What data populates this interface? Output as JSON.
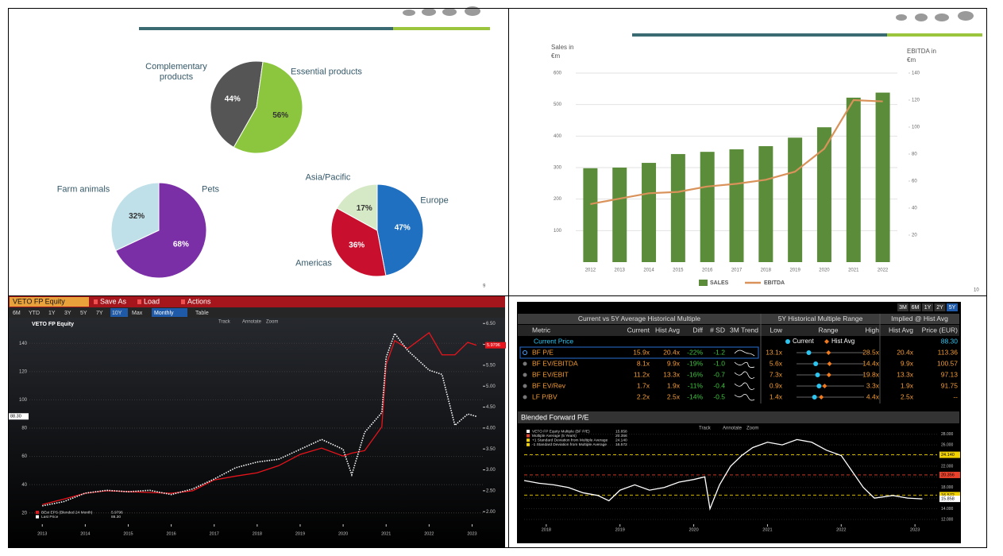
{
  "slides": [
    {
      "page_number": "9"
    },
    {
      "page_number": "10"
    }
  ],
  "chart_data": [
    {
      "type": "pie",
      "categories": [
        "Complementary products",
        "Essential products"
      ],
      "values": [
        44,
        56
      ],
      "value_labels": [
        "44%",
        "56%"
      ],
      "colors": [
        "#555555",
        "#8cc63f"
      ]
    },
    {
      "type": "pie",
      "categories": [
        "Farm animals",
        "Pets"
      ],
      "values": [
        32,
        68
      ],
      "value_labels": [
        "32%",
        "68%"
      ],
      "colors": [
        "#bfe0e8",
        "#7b2fa6"
      ]
    },
    {
      "type": "pie",
      "categories": [
        "Europe",
        "Americas",
        "Asia/Pacific"
      ],
      "values": [
        47,
        36,
        17
      ],
      "value_labels": [
        "47%",
        "36%",
        "17%"
      ],
      "colors": [
        "#1f70c1",
        "#c8102e",
        "#d6e9c6"
      ]
    },
    {
      "type": "bar",
      "y_label": "Sales in €m",
      "y2_label": "EBITDA in €m",
      "categories": [
        "2012",
        "2013",
        "2014",
        "2015",
        "2016",
        "2017",
        "2018",
        "2019",
        "2020",
        "2021",
        "2022"
      ],
      "series": [
        {
          "name": "SALES",
          "color": "#5b8c3a",
          "values": [
            298,
            300,
            315,
            343,
            350,
            358,
            368,
            395,
            428,
            522,
            538
          ]
        },
        {
          "name": "EBITDA",
          "color": "#d9925a",
          "type": "line",
          "axis": "y2",
          "values": [
            43,
            47,
            51,
            52,
            56,
            58,
            61,
            67,
            84,
            120,
            119
          ]
        }
      ],
      "ylim": [
        0,
        600
      ],
      "yticks": [
        100,
        200,
        300,
        400,
        500,
        600
      ],
      "y2lim": [
        0,
        140
      ],
      "y2ticks": [
        20,
        40,
        60,
        80,
        100,
        120,
        140
      ],
      "grid": true,
      "legend": "bottom"
    },
    {
      "type": "line",
      "title": "VETO FP Equity",
      "tools": [
        "Track",
        "Annotate",
        "Zoom"
      ],
      "x": [
        2013,
        2013.5,
        2014,
        2014.5,
        2015,
        2015.5,
        2016,
        2016.5,
        2017,
        2017.5,
        2018,
        2018.5,
        2019,
        2019.5,
        2020,
        2020.2,
        2020.5,
        2020.9,
        2021,
        2021.2,
        2021.5,
        2022,
        2022.3,
        2022.6,
        2022.9,
        2023.1
      ],
      "series": [
        {
          "name": "BEst EPS (Blended 24 Month)",
          "color": "#e8141c",
          "axis": "y2",
          "last": 5.9796,
          "values": [
            2.17,
            2.3,
            2.44,
            2.5,
            2.48,
            2.46,
            2.44,
            2.5,
            2.76,
            2.85,
            2.93,
            3.1,
            3.37,
            3.52,
            3.33,
            3.4,
            3.46,
            4.03,
            5.52,
            6.09,
            5.9,
            6.28,
            5.75,
            5.75,
            6.05,
            5.9796
          ]
        },
        {
          "name": "Last Price",
          "color": "#ffffff",
          "style": "dotted",
          "last": {
            "value": 88.3,
            "label": "88.30"
          },
          "values": [
            25,
            28,
            34,
            36,
            35,
            36,
            33,
            37,
            44,
            52,
            56,
            58,
            65,
            72,
            65,
            47,
            77,
            91,
            130,
            147,
            135,
            121,
            118,
            82,
            90,
            88.3
          ]
        }
      ],
      "xlim": [
        2012.7,
        2023.25
      ],
      "xticks": [
        2013,
        2014,
        2015,
        2016,
        2017,
        2018,
        2019,
        2020,
        2021,
        2022,
        2023
      ],
      "ylim": [
        12,
        157
      ],
      "yticks": [
        20,
        40,
        60,
        80,
        100,
        120,
        140
      ],
      "y2lim": [
        1.7,
        6.6
      ],
      "y2ticks": [
        {
          "value": 6.5,
          "label": "6.50"
        },
        {
          "value": 6,
          "label": "6.00"
        },
        {
          "value": 5.5,
          "label": "5.50"
        },
        {
          "value": 5,
          "label": "5.00"
        },
        {
          "value": 4.5,
          "label": "4.50"
        },
        {
          "value": 4,
          "label": "4.00"
        },
        {
          "value": 3.5,
          "label": "3.50"
        },
        {
          "value": 3,
          "label": "3.00"
        },
        {
          "value": 2.5,
          "label": "2.50"
        },
        {
          "value": 2,
          "label": "2.00"
        }
      ],
      "grid": true,
      "legend": "bottom-left"
    },
    {
      "type": "line",
      "title": "Blended Forward P/E",
      "tools": [
        "Track",
        "Annotate",
        "Zoom"
      ],
      "yaxis_side": "right",
      "x": [
        2017.7,
        2017.9,
        2018.1,
        2018.3,
        2018.5,
        2018.7,
        2018.85,
        2019.0,
        2019.2,
        2019.4,
        2019.6,
        2019.8,
        2020.0,
        2020.15,
        2020.22,
        2020.35,
        2020.5,
        2020.65,
        2020.8,
        2021.0,
        2021.2,
        2021.4,
        2021.6,
        2021.8,
        2022.0,
        2022.15,
        2022.3,
        2022.45,
        2022.7,
        2022.9,
        2023.1
      ],
      "series": [
        {
          "name": "VETO FP Equity Multiple (BF P/E)",
          "color": "#ffffff",
          "last": 15.858,
          "values": [
            19.3,
            18.8,
            18.5,
            18,
            17,
            16.5,
            15.5,
            17.5,
            18.5,
            17.5,
            18,
            19,
            19.5,
            20,
            14,
            18.5,
            22,
            24,
            25.5,
            26.5,
            26,
            27,
            26.5,
            25,
            24,
            21,
            18,
            16,
            16.5,
            16,
            15.858
          ]
        }
      ],
      "reference_lines": [
        {
          "name": "Multiple Average (5 Years)",
          "value": 20.356,
          "color": "#e8412c"
        },
        {
          "name": "+1 Standard Deviation from Multiple Average",
          "value": 24.14,
          "value_label": "24.140",
          "color": "#f2d200"
        },
        {
          "name": "-1 Standard Deviation from Multiple Average",
          "value": 16.572,
          "color": "#f2d200"
        }
      ],
      "xlim": [
        2017.7,
        2023.3
      ],
      "xticks": [
        2018,
        2019,
        2020,
        2021,
        2022,
        2023
      ],
      "ylim": [
        11.1,
        29
      ],
      "yticks": [
        {
          "value": 28,
          "label": "28.000"
        },
        {
          "value": 26,
          "label": "26.000"
        },
        {
          "value": 24,
          "label": "24.000"
        },
        {
          "value": 22,
          "label": "22.000"
        },
        {
          "value": 20,
          "label": "20.000"
        },
        {
          "value": 18,
          "label": "18.000"
        },
        {
          "value": 16,
          "label": "16.000"
        },
        {
          "value": 14,
          "label": "14.000"
        },
        {
          "value": 12,
          "label": "12.000"
        }
      ],
      "grid": true,
      "legend": "top-left"
    }
  ],
  "terminal_chart": {
    "security": "VETO FP Equity",
    "buttons": [
      "Save As",
      "Load",
      "Actions"
    ],
    "ranges": [
      "6M",
      "YTD",
      "1Y",
      "3Y",
      "5Y",
      "7Y",
      "10Y",
      "Max"
    ],
    "active_range": "10Y",
    "frequency": "Monthly",
    "view": "Table"
  },
  "multiples_table": {
    "periods": [
      "3M",
      "6M",
      "1Y",
      "2Y",
      "5Y"
    ],
    "active_period": "5Y",
    "group_headers": [
      "Current vs 5Y Average Historical Multiple",
      "5Y Historical Multiple Range",
      "Implied @ Hist Avg"
    ],
    "columns": [
      "Metric",
      "Current",
      "Hist Avg",
      "Diff",
      "# SD",
      "3M Trend",
      "Low",
      "Range",
      "High",
      "Hist Avg",
      "Price (EUR)"
    ],
    "range_legend": [
      "Current",
      "Hist Avg"
    ],
    "current_price": {
      "label": "Current Price",
      "value": "88.30"
    },
    "rows": [
      [
        "BF P/E",
        "15.9x",
        "20.4x",
        "-22%",
        "-1.2",
        "13.1x",
        "28.5x",
        "20.4x",
        "113.36"
      ],
      [
        "BF EV/EBITDA",
        "8.1x",
        "9.9x",
        "-19%",
        "-1.0",
        "5.6x",
        "14.4x",
        "9.9x",
        "100.57"
      ],
      [
        "BF EV/EBIT",
        "11.2x",
        "13.3x",
        "-16%",
        "-0.7",
        "7.3x",
        "19.8x",
        "13.3x",
        "97.13"
      ],
      [
        "BF EV/Rev",
        "1.7x",
        "1.9x",
        "-11%",
        "-0.4",
        "0.9x",
        "3.3x",
        "1.9x",
        "91.75"
      ],
      [
        "LF P/BV",
        "2.2x",
        "2.5x",
        "-14%",
        "-0.5",
        "1.4x",
        "4.4x",
        "2.5x",
        "--"
      ]
    ]
  }
}
